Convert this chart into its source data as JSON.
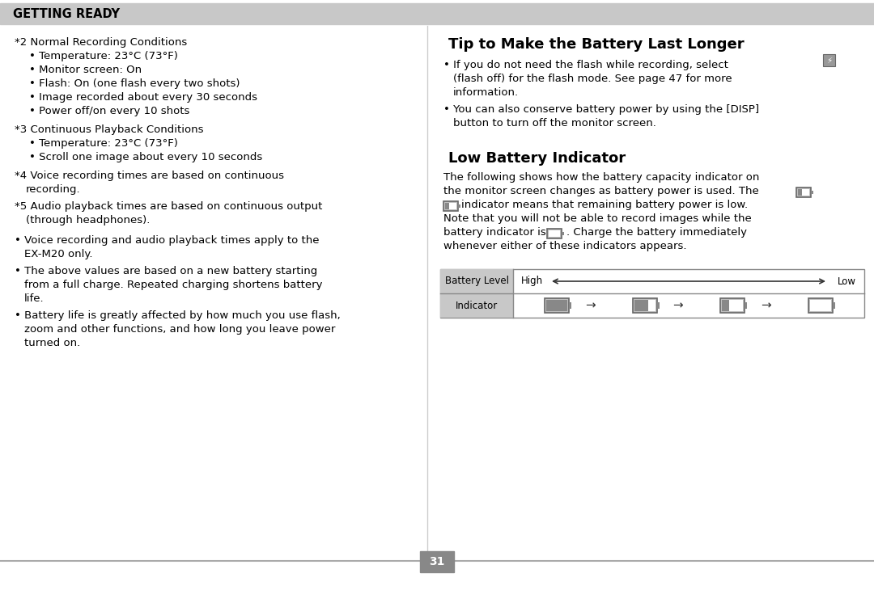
{
  "page_bg": "#ffffff",
  "header_bg": "#c8c8c8",
  "header_text": "GETTING READY",
  "header_text_color": "#000000",
  "divider_color": "#aaaaaa",
  "page_number": "31",
  "page_num_bg": "#888888",
  "page_num_color": "#ffffff",
  "right_title1": "Tip to Make the Battery Last Longer",
  "right_title2": "Low Battery Indicator",
  "table_label_bg": "#c8c8c8",
  "table_border": "#888888",
  "fs_body": 9.5,
  "fs_header": 10.5,
  "fs_title": 13.0,
  "fs_small": 8.5
}
